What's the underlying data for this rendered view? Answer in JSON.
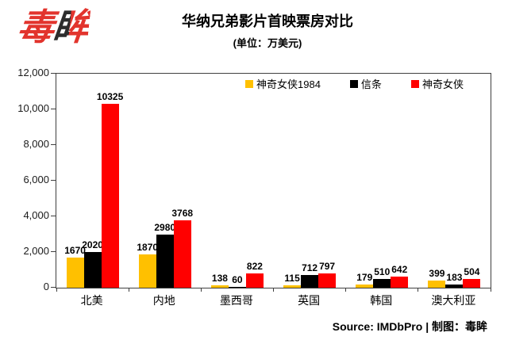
{
  "logo": {
    "char1": "毒",
    "char2": "眸"
  },
  "header": {
    "title": "华纳兄弟影片首映票房对比",
    "subtitle": "(单位：万美元)"
  },
  "footer": {
    "source": "Source: IMDbPro | 制图：毒眸"
  },
  "colors": {
    "gold": "#FFC000",
    "black": "#000000",
    "red": "#FF0000",
    "logo_red": "#E2342D",
    "axis": "#3F3F3F"
  },
  "chart_data": {
    "type": "bar",
    "title": "华纳兄弟影片首映票房对比",
    "subtitle_unit": "(单位：万美元)",
    "categories": [
      "北美",
      "内地",
      "墨西哥",
      "英国",
      "韩国",
      "澳大利亚"
    ],
    "series": [
      {
        "name": "神奇女侠1984",
        "color": "#FFC000",
        "values": [
          1670,
          1870,
          138,
          115,
          179,
          399
        ]
      },
      {
        "name": "信条",
        "color": "#000000",
        "values": [
          2020,
          2980,
          60,
          712,
          510,
          183
        ]
      },
      {
        "name": "神奇女侠",
        "color": "#FF0000",
        "values": [
          10325,
          3768,
          822,
          797,
          642,
          504
        ]
      }
    ],
    "xlabel": "",
    "ylabel": "",
    "ylim": [
      0,
      12000
    ],
    "ytick_step": 2000,
    "grid": false,
    "legend_position": "top-inside",
    "source_note": "Source: IMDbPro | 制图：毒眸"
  }
}
